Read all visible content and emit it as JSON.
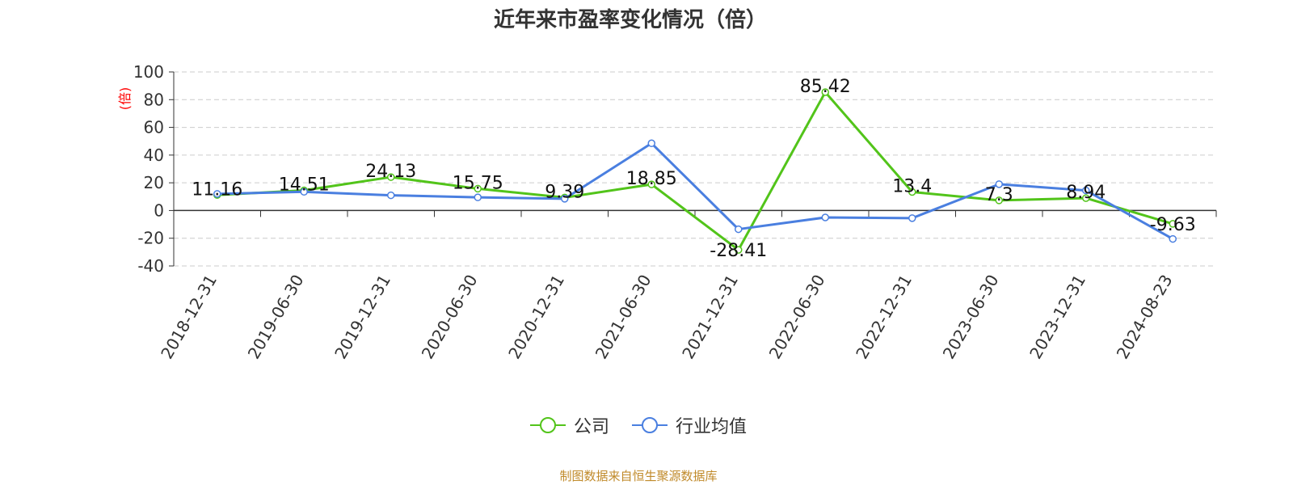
{
  "chart_data": {
    "type": "line",
    "title": "近年来市盈率变化情况（倍）",
    "ylabel": "(倍)",
    "ylabel_color": "#ff0000",
    "categories": [
      "2018-12-31",
      "2019-06-30",
      "2019-12-31",
      "2020-06-30",
      "2020-12-31",
      "2021-06-30",
      "2021-12-31",
      "2022-06-30",
      "2022-12-31",
      "2023-06-30",
      "2023-12-31",
      "2024-08-23"
    ],
    "ylim": [
      -40,
      100
    ],
    "yticks": [
      -40,
      -20,
      0,
      20,
      40,
      60,
      80,
      100
    ],
    "grid": true,
    "legend_position": "bottom",
    "series": [
      {
        "name": "公司",
        "color": "#52c41a",
        "values": [
          11.16,
          14.51,
          24.13,
          15.75,
          9.39,
          18.85,
          -28.41,
          85.42,
          13.4,
          7.3,
          8.94,
          -9.63
        ],
        "data_labels": [
          "11.16",
          "14.51",
          "24.13",
          "15.75",
          "9.39",
          "18.85",
          "-28.41",
          "85.42",
          "13.4",
          "7.3",
          "8.94",
          "-9.63"
        ]
      },
      {
        "name": "行业均值",
        "color": "#4a7fe0",
        "values": [
          12.0,
          13.5,
          11.0,
          9.5,
          8.5,
          48.5,
          -13.5,
          -5.0,
          -5.5,
          19.0,
          14.5,
          -20.5
        ]
      }
    ]
  },
  "source_note": "制图数据来自恒生聚源数据库"
}
